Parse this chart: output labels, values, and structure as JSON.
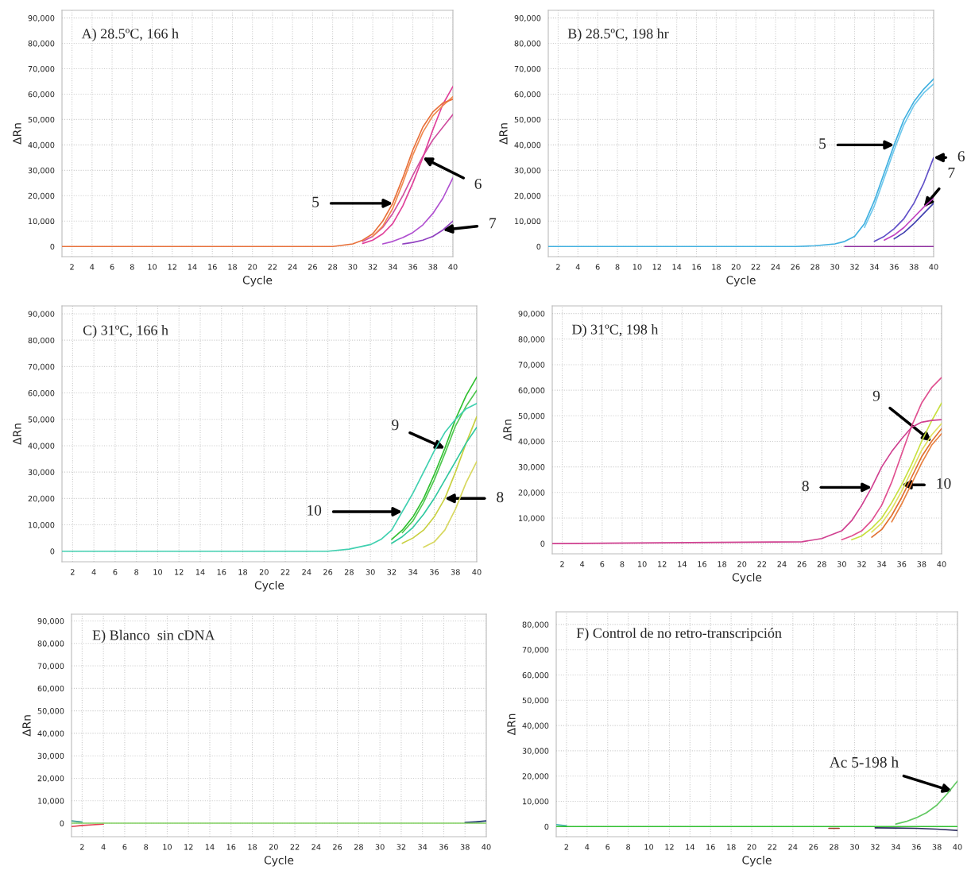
{
  "chart_data": [
    {
      "type": "line",
      "title": "A) 28.5ºC, 166 h",
      "xlabel": "Cycle",
      "ylabel": "ΔRn",
      "grid": true,
      "xlim": [
        1,
        40
      ],
      "xticks": [
        2,
        4,
        6,
        8,
        10,
        12,
        14,
        16,
        18,
        20,
        22,
        24,
        26,
        28,
        30,
        32,
        34,
        36,
        38,
        40
      ],
      "ylim": [
        -4000,
        93000
      ],
      "yticks": [
        {
          "value": 0,
          "label": "0"
        },
        {
          "value": 10000,
          "label": "10,000"
        },
        {
          "value": 20000,
          "label": "20,000"
        },
        {
          "value": 30000,
          "label": "30,000"
        },
        {
          "value": 40000,
          "label": "40,000"
        },
        {
          "value": 50000,
          "label": "50,000"
        },
        {
          "value": 60000,
          "label": "60,000"
        },
        {
          "value": 70000,
          "label": "70,000"
        },
        {
          "value": 80000,
          "label": "80,000"
        },
        {
          "value": 90000,
          "label": "90,000"
        }
      ],
      "x": [
        1,
        26,
        28,
        30,
        31,
        32,
        33,
        34,
        35,
        36,
        37,
        38,
        39,
        40
      ],
      "series": [
        {
          "color": "#e8703a",
          "values": [
            0,
            0,
            0,
            1000,
            2500,
            5000,
            10000,
            17000,
            27000,
            38000,
            47000,
            53000,
            56500,
            58000
          ]
        },
        {
          "color": "#f08a50",
          "x": [
            32,
            33,
            34,
            35,
            36,
            37,
            38,
            39,
            40
          ],
          "values": [
            4000,
            8000,
            15000,
            25000,
            36000,
            45000,
            51500,
            55500,
            59000
          ]
        },
        {
          "color": "#e0409a",
          "x": [
            31,
            32,
            33,
            34,
            35,
            36,
            37,
            38,
            39,
            40
          ],
          "values": [
            1200,
            2500,
            5000,
            9000,
            16000,
            25000,
            35000,
            46000,
            56000,
            63000
          ]
        },
        {
          "color": "#d050a0",
          "x": [
            31,
            32,
            33,
            34,
            35,
            36,
            37,
            38,
            39,
            40
          ],
          "values": [
            2000,
            4000,
            7500,
            13000,
            20000,
            28000,
            35500,
            42000,
            47000,
            52000
          ]
        },
        {
          "color": "#b050d0",
          "x": [
            33,
            34,
            35,
            36,
            37,
            38,
            39,
            40
          ],
          "values": [
            1000,
            2000,
            3500,
            5500,
            8500,
            13000,
            19000,
            27000
          ]
        },
        {
          "color": "#9040c0",
          "x": [
            35,
            36,
            37,
            38,
            39,
            40
          ],
          "values": [
            1000,
            1600,
            2500,
            4000,
            6500,
            10000
          ]
        }
      ],
      "annotations": [
        {
          "text": "5",
          "x": 34,
          "y": 17000
        },
        {
          "text": "6",
          "x": 37,
          "y": 35000
        },
        {
          "text": "7",
          "x": 39,
          "y": 6500
        }
      ]
    },
    {
      "type": "line",
      "title": "B) 28.5ºC, 198 hr",
      "xlabel": "Cycle",
      "ylabel": "ΔRn",
      "grid": true,
      "xlim": [
        1,
        40
      ],
      "xticks": [
        2,
        4,
        6,
        8,
        10,
        12,
        14,
        16,
        18,
        20,
        22,
        24,
        26,
        28,
        30,
        32,
        34,
        36,
        38,
        40
      ],
      "ylim": [
        -4000,
        93000
      ],
      "yticks": [
        {
          "value": 0,
          "label": "0"
        },
        {
          "value": 10000,
          "label": "10,000"
        },
        {
          "value": 20000,
          "label": "20,000"
        },
        {
          "value": 30000,
          "label": "30,000"
        },
        {
          "value": 40000,
          "label": "40,000"
        },
        {
          "value": 50000,
          "label": "50,000"
        },
        {
          "value": 60000,
          "label": "60,000"
        },
        {
          "value": 70000,
          "label": "70,000"
        },
        {
          "value": 80000,
          "label": "80,000"
        },
        {
          "value": 90000,
          "label": "90,000"
        }
      ],
      "x": [
        1,
        26,
        28,
        30,
        31,
        32,
        33,
        34,
        35,
        36,
        37,
        38,
        39,
        40
      ],
      "series": [
        {
          "color": "#40b0e0",
          "values": [
            0,
            0,
            300,
            1000,
            2000,
            4000,
            9000,
            18000,
            29000,
            40000,
            50000,
            57000,
            62000,
            66000
          ]
        },
        {
          "color": "#70c8ec",
          "x": [
            33,
            34,
            35,
            36,
            37,
            38,
            39,
            40
          ],
          "values": [
            7500,
            16000,
            27000,
            38000,
            48000,
            55500,
            60500,
            64000
          ]
        },
        {
          "color": "#6050c8",
          "x": [
            34,
            35,
            36,
            37,
            38,
            39,
            40
          ],
          "values": [
            2000,
            4000,
            7000,
            11000,
            17000,
            25000,
            35000
          ]
        },
        {
          "color": "#c040c0",
          "x": [
            35,
            36,
            37,
            38,
            39,
            40
          ],
          "values": [
            2500,
            4500,
            7500,
            11500,
            15500,
            19000
          ]
        },
        {
          "color": "#4040b0",
          "x": [
            36,
            37,
            38,
            39,
            40
          ],
          "values": [
            3000,
            5500,
            9000,
            13000,
            17000
          ]
        },
        {
          "color": "#9030a0",
          "x": [
            31,
            40
          ],
          "values": [
            0,
            0
          ]
        }
      ],
      "annotations": [
        {
          "text": "5",
          "x": 36,
          "y": 40000
        },
        {
          "text": "6",
          "x": 40,
          "y": 35000
        },
        {
          "text": "7",
          "x": 39,
          "y": 15500
        }
      ]
    },
    {
      "type": "line",
      "title": "C) 31ºC, 166 h",
      "xlabel": "Cycle",
      "ylabel": "ΔRn",
      "grid": true,
      "xlim": [
        1,
        40
      ],
      "xticks": [
        2,
        4,
        6,
        8,
        10,
        12,
        14,
        16,
        18,
        20,
        22,
        24,
        26,
        28,
        30,
        32,
        34,
        36,
        38,
        40
      ],
      "ylim": [
        -4000,
        93000
      ],
      "yticks": [
        {
          "value": 0,
          "label": "0"
        },
        {
          "value": 10000,
          "label": "10,000"
        },
        {
          "value": 20000,
          "label": "20,000"
        },
        {
          "value": 30000,
          "label": "30,000"
        },
        {
          "value": 40000,
          "label": "40,000"
        },
        {
          "value": 50000,
          "label": "50,000"
        },
        {
          "value": 60000,
          "label": "60,000"
        },
        {
          "value": 70000,
          "label": "70,000"
        },
        {
          "value": 80000,
          "label": "80,000"
        },
        {
          "value": 90000,
          "label": "90,000"
        }
      ],
      "x": [
        1,
        26,
        28,
        30,
        31,
        32,
        33,
        34,
        35,
        36,
        37,
        38,
        39,
        40
      ],
      "series": [
        {
          "color": "#40d0b0",
          "values": [
            0,
            0,
            800,
            2500,
            4500,
            8000,
            15000,
            22000,
            30000,
            38000,
            45000,
            50000,
            54000,
            56000
          ]
        },
        {
          "color": "#30c8a0",
          "x": [
            32,
            33,
            34,
            35,
            36,
            37,
            38,
            39,
            40
          ],
          "values": [
            3000,
            5500,
            9000,
            14000,
            20000,
            27000,
            34000,
            41000,
            47000
          ]
        },
        {
          "color": "#30c030",
          "x": [
            32,
            33,
            34,
            35,
            36,
            37,
            38,
            39,
            40
          ],
          "values": [
            4500,
            8000,
            13000,
            20000,
            29000,
            39000,
            50000,
            59000,
            66000
          ]
        },
        {
          "color": "#50c850",
          "x": [
            33,
            34,
            35,
            36,
            37,
            38,
            39,
            40
          ],
          "values": [
            7000,
            11500,
            18500,
            27000,
            37000,
            47500,
            55000,
            61000
          ]
        },
        {
          "color": "#c8d040",
          "x": [
            33,
            34,
            35,
            36,
            37,
            38,
            39,
            40
          ],
          "values": [
            3000,
            5000,
            8000,
            13000,
            20000,
            30000,
            41000,
            51000
          ]
        },
        {
          "color": "#d8d860",
          "x": [
            35,
            36,
            37,
            38,
            39,
            40
          ],
          "values": [
            1500,
            3500,
            8000,
            16000,
            26000,
            34000
          ]
        }
      ],
      "annotations": [
        {
          "text": "9",
          "x": 37,
          "y": 39000
        },
        {
          "text": "10",
          "x": 33,
          "y": 15000
        },
        {
          "text": "8",
          "x": 37,
          "y": 20000
        }
      ]
    },
    {
      "type": "line",
      "title": "D) 31ºC, 198 h",
      "xlabel": "Cycle",
      "ylabel": "ΔRn",
      "grid": true,
      "xlim": [
        1,
        40
      ],
      "xticks": [
        2,
        4,
        6,
        8,
        10,
        12,
        14,
        16,
        18,
        20,
        22,
        24,
        26,
        28,
        30,
        32,
        34,
        36,
        38,
        40
      ],
      "ylim": [
        -4000,
        93000
      ],
      "yticks": [
        {
          "value": 0,
          "label": "0"
        },
        {
          "value": 10000,
          "label": "10,000"
        },
        {
          "value": 20000,
          "label": "20,000"
        },
        {
          "value": 30000,
          "label": "30,000"
        },
        {
          "value": 40000,
          "label": "40,000"
        },
        {
          "value": 50000,
          "label": "50,000"
        },
        {
          "value": 60000,
          "label": "60,000"
        },
        {
          "value": 70000,
          "label": "70,000"
        },
        {
          "value": 80000,
          "label": "80,000"
        },
        {
          "value": 90000,
          "label": "90,000"
        }
      ],
      "x": [
        1,
        26,
        28,
        30,
        31,
        32,
        33,
        34,
        35,
        36,
        37,
        38,
        39,
        40
      ],
      "series": [
        {
          "color": "#d04090",
          "values": [
            0,
            700,
            2000,
            5000,
            9000,
            15000,
            22000,
            30000,
            36000,
            41000,
            45500,
            47500,
            48200,
            48500
          ]
        },
        {
          "color": "#e05090",
          "x": [
            30,
            31,
            32,
            33,
            34,
            35,
            36,
            37,
            38,
            39,
            40
          ],
          "values": [
            1500,
            3000,
            5000,
            9000,
            15000,
            24000,
            35000,
            46000,
            55000,
            61000,
            65000
          ]
        },
        {
          "color": "#c8e040",
          "x": [
            31,
            32,
            33,
            34,
            35,
            36,
            37,
            38,
            39,
            40
          ],
          "values": [
            1500,
            3000,
            6000,
            10000,
            16000,
            23000,
            31000,
            40000,
            48000,
            55000
          ]
        },
        {
          "color": "#e0e060",
          "x": [
            33,
            34,
            35,
            36,
            37,
            38,
            39,
            40
          ],
          "values": [
            4500,
            8000,
            13500,
            20500,
            28500,
            36500,
            42500,
            47000
          ]
        },
        {
          "color": "#e07030",
          "x": [
            33,
            34,
            35,
            36,
            37,
            38,
            39,
            40
          ],
          "values": [
            2500,
            5500,
            11000,
            18000,
            26000,
            34000,
            40000,
            45000
          ]
        },
        {
          "color": "#e88040",
          "x": [
            35,
            36,
            37,
            38,
            39,
            40
          ],
          "values": [
            8500,
            15500,
            23500,
            31500,
            38500,
            43000
          ]
        }
      ],
      "annotations": [
        {
          "text": "9",
          "x": 39,
          "y": 40000
        },
        {
          "text": "8",
          "x": 33,
          "y": 22000
        },
        {
          "text": "10",
          "x": 36,
          "y": 23000
        }
      ]
    },
    {
      "type": "line",
      "title": "E) Blanco  sin cDNA",
      "xlabel": "Cycle",
      "ylabel": "ΔRn",
      "grid": true,
      "xlim": [
        1,
        40
      ],
      "xticks": [
        2,
        4,
        6,
        8,
        10,
        12,
        14,
        16,
        18,
        20,
        22,
        24,
        26,
        28,
        30,
        32,
        34,
        36,
        38,
        40
      ],
      "ylim": [
        -6000,
        93000
      ],
      "yticks": [
        {
          "value": 0,
          "label": "0"
        },
        {
          "value": 10000,
          "label": "10,000"
        },
        {
          "value": 20000,
          "label": "20,000"
        },
        {
          "value": 30000,
          "label": "30,000"
        },
        {
          "value": 40000,
          "label": "40,000"
        },
        {
          "value": 50000,
          "label": "50,000"
        },
        {
          "value": 60000,
          "label": "60,000"
        },
        {
          "value": 70000,
          "label": "70,000"
        },
        {
          "value": 80000,
          "label": "80,000"
        },
        {
          "value": 90000,
          "label": "90,000"
        }
      ],
      "x": [
        1,
        2,
        3,
        4,
        5,
        37,
        38,
        39,
        40
      ],
      "series": [
        {
          "color": "#80d060",
          "values": [
            0,
            0,
            0,
            0,
            0,
            0,
            0,
            0,
            0
          ]
        },
        {
          "color": "#e04050",
          "x": [
            1,
            2,
            3,
            4
          ],
          "values": [
            -1500,
            -1000,
            -700,
            -400
          ]
        },
        {
          "color": "#40a090",
          "x": [
            1,
            2
          ],
          "values": [
            1000,
            500
          ]
        },
        {
          "color": "#203870",
          "x": [
            38,
            39,
            40
          ],
          "values": [
            300,
            600,
            1000
          ]
        }
      ]
    },
    {
      "type": "line",
      "title": "F) Control de no retro-transcripción",
      "xlabel": "Cycle",
      "ylabel": "ΔRn",
      "grid": true,
      "xlim": [
        1,
        40
      ],
      "xticks": [
        2,
        4,
        6,
        8,
        10,
        12,
        14,
        16,
        18,
        20,
        22,
        24,
        26,
        28,
        30,
        32,
        34,
        36,
        38,
        40
      ],
      "ylim": [
        -4000,
        85000
      ],
      "yticks": [
        {
          "value": 0,
          "label": "0"
        },
        {
          "value": 10000,
          "label": "10,000"
        },
        {
          "value": 20000,
          "label": "20,000"
        },
        {
          "value": 30000,
          "label": "30,000"
        },
        {
          "value": 40000,
          "label": "40,000"
        },
        {
          "value": 50000,
          "label": "50,000"
        },
        {
          "value": 60000,
          "label": "60,000"
        },
        {
          "value": 70000,
          "label": "70,000"
        },
        {
          "value": 80000,
          "label": "80,000"
        }
      ],
      "x": [
        1,
        26,
        28,
        30,
        32,
        34,
        35,
        36,
        37,
        38,
        39,
        40
      ],
      "series": [
        {
          "color": "#30c030",
          "values": [
            0,
            0,
            0,
            0,
            0,
            0,
            0,
            0,
            0,
            0,
            0,
            0
          ]
        },
        {
          "color": "#60c860",
          "x": [
            34,
            35,
            36,
            37,
            38,
            39,
            40
          ],
          "values": [
            1000,
            2000,
            3500,
            5500,
            8500,
            13000,
            18000
          ]
        },
        {
          "color": "#303060",
          "x": [
            32,
            34,
            36,
            38,
            40
          ],
          "values": [
            -500,
            -600,
            -700,
            -1000,
            -1500
          ]
        },
        {
          "color": "#a04030",
          "x": [
            27.5,
            28.5
          ],
          "values": [
            -700,
            -700
          ]
        },
        {
          "color": "#40b0b0",
          "x": [
            1,
            2
          ],
          "values": [
            800,
            300
          ]
        }
      ],
      "annotations": [
        {
          "text": "Ac 5-198 h",
          "x": 39.5,
          "y": 14000
        }
      ]
    }
  ]
}
